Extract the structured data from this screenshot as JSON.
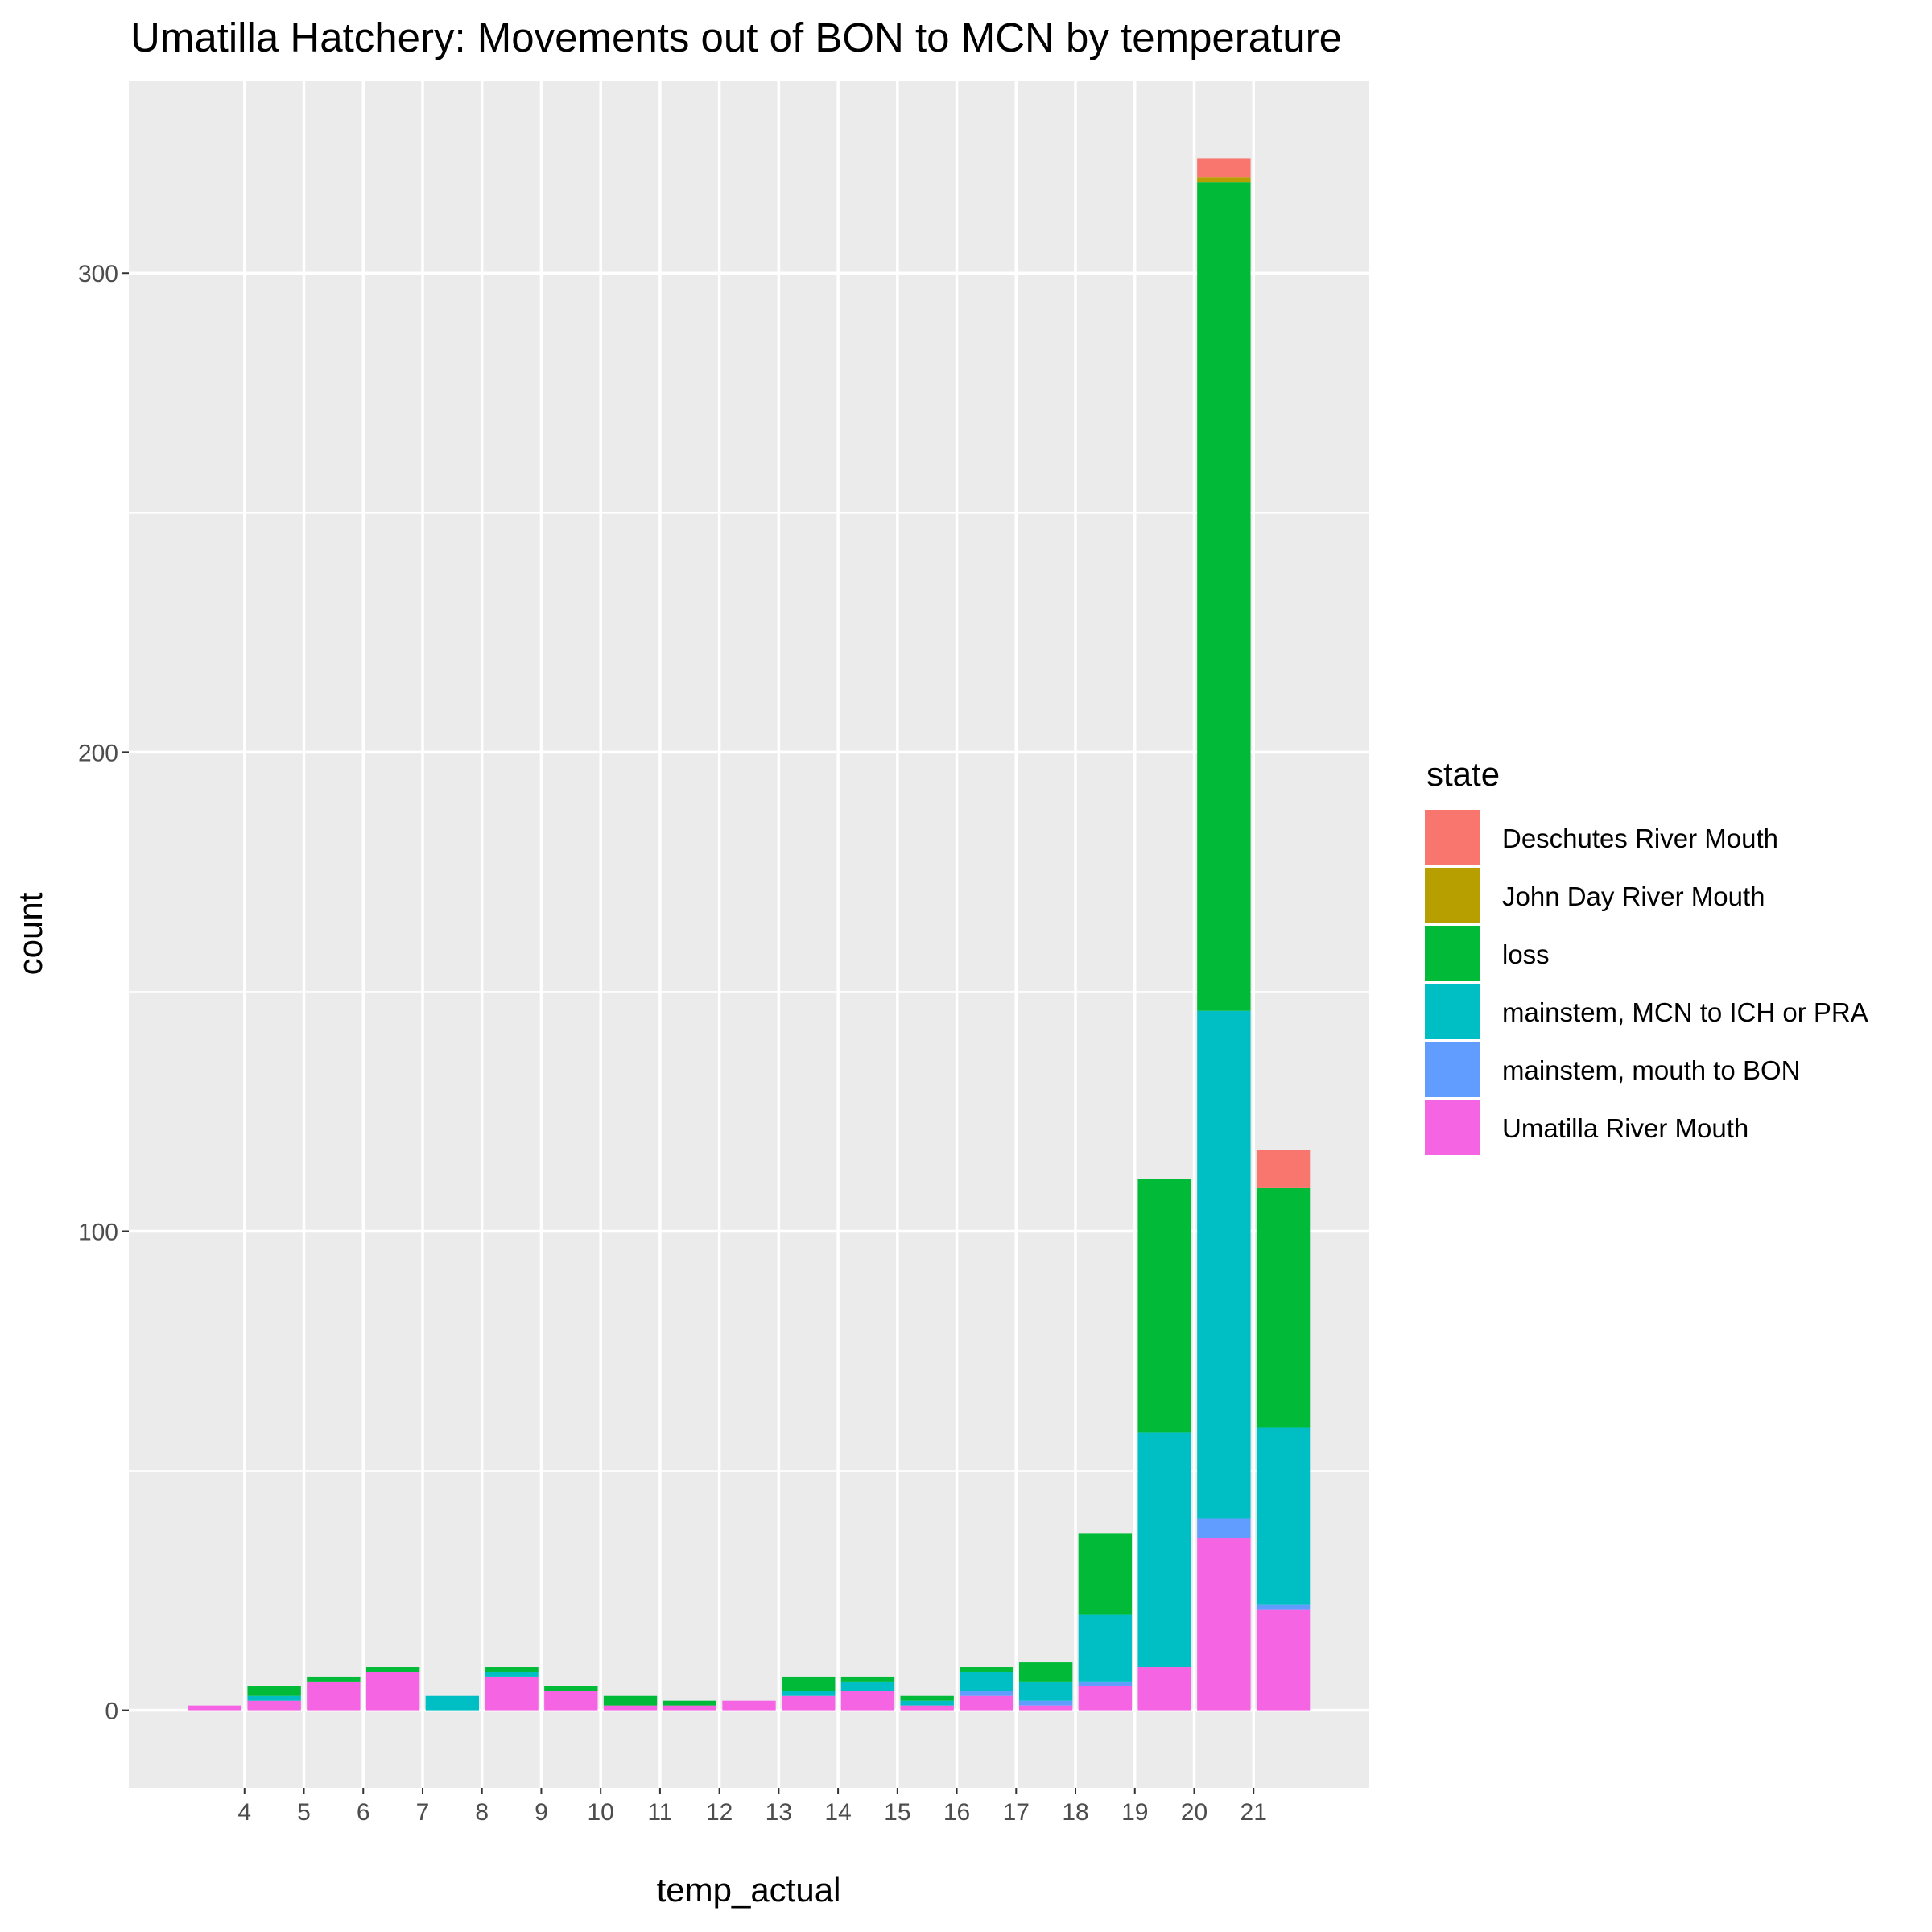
{
  "chart_data": {
    "type": "bar",
    "stacked": true,
    "title": "Umatilla Hatchery: Movements out of BON to MCN by temperature",
    "xlabel": "temp_actual",
    "ylabel": "count",
    "x_ticks": [
      "4",
      "5",
      "6",
      "7",
      "8",
      "9",
      "10",
      "11",
      "12",
      "13",
      "14",
      "15",
      "16",
      "17",
      "18",
      "19",
      "20",
      "21"
    ],
    "y_ticks": [
      0,
      100,
      200,
      300
    ],
    "xlim": [
      2.05,
      22.95
    ],
    "ylim": [
      -16.2,
      340.2
    ],
    "grid": true,
    "legend": {
      "title": "state",
      "position": "right"
    },
    "x": [
      3.5,
      4.5,
      5.5,
      6.5,
      7.5,
      8.5,
      9.5,
      10.5,
      11.5,
      12.5,
      13.5,
      14.5,
      15.5,
      16.5,
      17.5,
      18.5,
      19.5,
      20.5,
      21.5
    ],
    "bar_width": 0.9,
    "series": [
      {
        "name": "Umatilla River Mouth",
        "color": "#F564E3",
        "values": [
          1,
          2,
          6,
          8,
          0,
          7,
          4,
          1,
          1,
          2,
          3,
          4,
          1,
          3,
          1,
          5,
          9,
          36,
          21
        ]
      },
      {
        "name": "mainstem, mouth to BON",
        "color": "#619CFF",
        "values": [
          0,
          0,
          0,
          0,
          0,
          0,
          0,
          0,
          0,
          0,
          0,
          0,
          0,
          1,
          1,
          1,
          0,
          4,
          1
        ]
      },
      {
        "name": "mainstem, MCN to ICH or PRA",
        "color": "#00BFC4",
        "values": [
          0,
          1,
          0,
          0,
          3,
          1,
          0,
          0,
          0,
          0,
          1,
          2,
          1,
          4,
          4,
          14,
          49,
          106,
          37
        ]
      },
      {
        "name": "loss",
        "color": "#00BA38",
        "values": [
          0,
          2,
          1,
          1,
          0,
          1,
          1,
          2,
          1,
          0,
          3,
          1,
          1,
          1,
          4,
          17,
          53,
          173,
          50
        ]
      },
      {
        "name": "John Day River Mouth",
        "color": "#B79F00",
        "values": [
          0,
          0,
          0,
          0,
          0,
          0,
          0,
          0,
          0,
          0,
          0,
          0,
          0,
          0,
          0,
          0,
          0,
          1,
          0
        ]
      },
      {
        "name": "Deschutes River Mouth",
        "color": "#F8766D",
        "values": [
          0,
          0,
          0,
          0,
          0,
          0,
          0,
          0,
          0,
          0,
          0,
          0,
          0,
          0,
          0,
          0,
          0,
          4,
          8
        ]
      }
    ],
    "legend_order": [
      "Deschutes River Mouth",
      "John Day River Mouth",
      "loss",
      "mainstem, MCN to ICH or PRA",
      "mainstem, mouth to BON",
      "Umatilla River Mouth"
    ]
  }
}
